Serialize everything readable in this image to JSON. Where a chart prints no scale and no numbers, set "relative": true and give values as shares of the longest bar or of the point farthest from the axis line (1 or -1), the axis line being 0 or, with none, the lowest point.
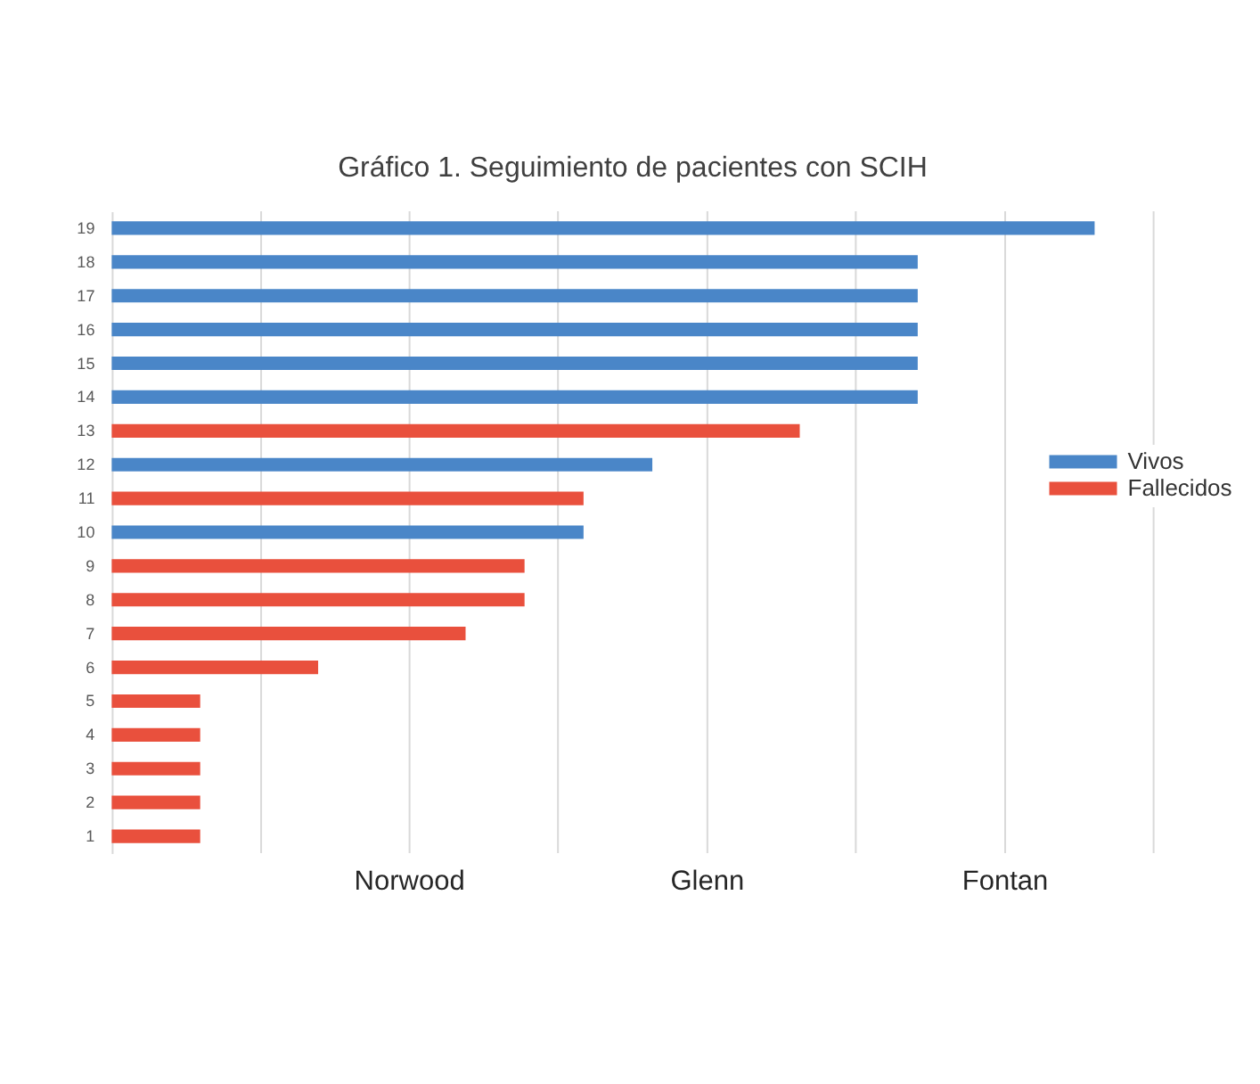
{
  "chart_data": {
    "type": "bar",
    "orientation": "horizontal",
    "relative": true,
    "title": "Gráfico 1. Seguimiento de pacientes con SCIH",
    "categories": [
      "19",
      "18",
      "17",
      "16",
      "15",
      "14",
      "13",
      "12",
      "11",
      "10",
      "9",
      "8",
      "7",
      "6",
      "5",
      "4",
      "3",
      "2",
      "1"
    ],
    "series": [
      {
        "name": "Vivos",
        "color": "#4a86c8",
        "values": [
          1,
          0.82,
          0.82,
          0.82,
          0.82,
          0.82,
          null,
          0.55,
          null,
          0.48,
          null,
          null,
          null,
          null,
          null,
          null,
          null,
          null,
          null
        ]
      },
      {
        "name": "Fallecidos",
        "color": "#e9503d",
        "values": [
          null,
          null,
          null,
          null,
          null,
          null,
          0.7,
          null,
          0.48,
          null,
          0.42,
          0.42,
          0.36,
          0.21,
          0.09,
          0.09,
          0.09,
          0.09,
          0.09
        ]
      }
    ],
    "ref_lines": [
      {
        "axis": "x",
        "value": 0.152,
        "color": "#d9d9d9"
      },
      {
        "axis": "x",
        "value": 0.303,
        "label": "Norwood",
        "color": "#d9d9d9"
      },
      {
        "axis": "x",
        "value": 0.454,
        "color": "#d9d9d9"
      },
      {
        "axis": "x",
        "value": 0.606,
        "label": "Glenn",
        "color": "#d9d9d9"
      },
      {
        "axis": "x",
        "value": 0.757,
        "color": "#d9d9d9"
      },
      {
        "axis": "x",
        "value": 0.909,
        "label": "Fontan",
        "color": "#d9d9d9"
      },
      {
        "axis": "x",
        "value": 1.06,
        "color": "#d9d9d9"
      }
    ],
    "legend": "right"
  }
}
